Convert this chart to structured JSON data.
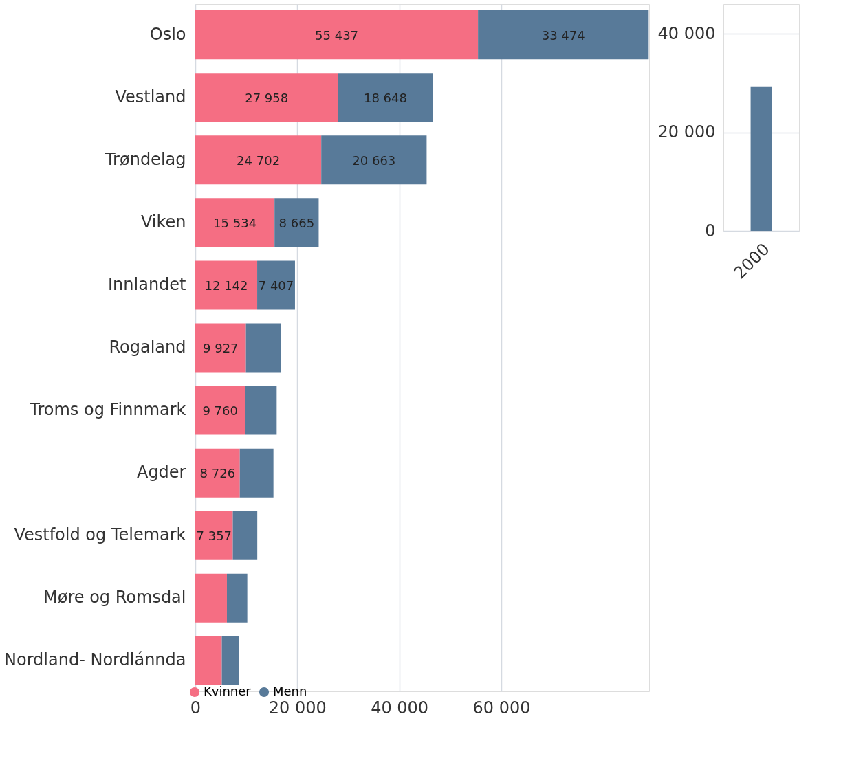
{
  "chart_data": [
    {
      "type": "bar",
      "orientation": "horizontal",
      "stacked": true,
      "categories": [
        "Oslo",
        "Vestland",
        "Trøndelag",
        "Viken",
        "Innlandet",
        "Rogaland",
        "Troms og Finnmark",
        "Agder",
        "Vestfold og Telemark",
        "Møre og Romsdal",
        "Nordland- Nordlánnda"
      ],
      "series": [
        {
          "name": "Kvinner",
          "color": "#f56e83",
          "values": [
            55437,
            27958,
            24702,
            15534,
            12142,
            9927,
            9760,
            8726,
            7357,
            6200,
            5200
          ],
          "value_labels": [
            "55 437",
            "27 958",
            "24 702",
            "15 534",
            "12 142",
            "9 927",
            "9 760",
            "8 726",
            "7 357",
            null,
            null
          ]
        },
        {
          "name": "Menn",
          "color": "#587a99",
          "values": [
            33474,
            18648,
            20663,
            8665,
            7407,
            6900,
            6200,
            6600,
            4800,
            4000,
            3400
          ],
          "value_labels": [
            "33 474",
            "18 648",
            "20 663",
            "8 665",
            "7 407",
            null,
            null,
            null,
            null,
            null,
            null
          ]
        }
      ],
      "xlim": [
        0,
        89000
      ],
      "xticks": [
        0,
        {
          "value": 20000,
          "label": "20 000"
        },
        {
          "value": 40000,
          "label": "40 000"
        },
        {
          "value": 60000,
          "label": "60 000"
        }
      ],
      "grid": "x",
      "legend": "bottom left"
    },
    {
      "type": "bar",
      "categories": [
        "2000"
      ],
      "series": [
        {
          "color": "#587a99",
          "values": [
            29300
          ]
        }
      ],
      "ylim": [
        0,
        46000
      ],
      "yticks": [
        0,
        {
          "value": 20000,
          "label": "20 000"
        },
        {
          "value": 40000,
          "label": "40 000"
        }
      ],
      "grid": "y"
    }
  ]
}
